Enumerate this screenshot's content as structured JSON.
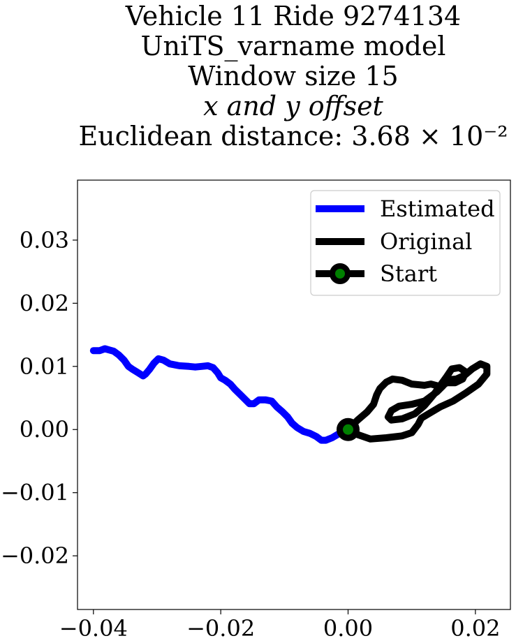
{
  "chart_data": {
    "type": "line",
    "title_lines": [
      "Vehicle 11 Ride 9274134",
      "UniTS_varname model",
      "Window size 15",
      "x and y offset",
      "Euclidean distance: 3.68 × 10⁻²"
    ],
    "xlabel": "",
    "ylabel": "",
    "xlim": [
      -0.0425,
      0.0255
    ],
    "ylim": [
      -0.0285,
      0.0395
    ],
    "grid": false,
    "x_ticks": [
      -0.04,
      -0.02,
      0.0,
      0.02
    ],
    "x_tick_labels": [
      "−0.04",
      "−0.02",
      "0.00",
      "0.02"
    ],
    "y_ticks": [
      -0.02,
      -0.01,
      0.0,
      0.01,
      0.02,
      0.03
    ],
    "y_tick_labels": [
      "−0.02",
      "−0.01",
      "0.00",
      "0.01",
      "0.02",
      "0.03"
    ],
    "legend_position": "top-right",
    "series": [
      {
        "name": "Estimated",
        "color": "#0000ff",
        "points": [
          [
            -0.04,
            0.0125
          ],
          [
            -0.039,
            0.0125
          ],
          [
            -0.0382,
            0.0128
          ],
          [
            -0.0375,
            0.0126
          ],
          [
            -0.0368,
            0.0124
          ],
          [
            -0.036,
            0.0118
          ],
          [
            -0.0352,
            0.011
          ],
          [
            -0.0345,
            0.01
          ],
          [
            -0.0338,
            0.0095
          ],
          [
            -0.033,
            0.009
          ],
          [
            -0.0322,
            0.0085
          ],
          [
            -0.0318,
            0.0088
          ],
          [
            -0.0312,
            0.0095
          ],
          [
            -0.0305,
            0.0105
          ],
          [
            -0.0298,
            0.0112
          ],
          [
            -0.029,
            0.011
          ],
          [
            -0.028,
            0.0104
          ],
          [
            -0.0265,
            0.0101
          ],
          [
            -0.025,
            0.01
          ],
          [
            -0.024,
            0.0099
          ],
          [
            -0.023,
            0.01
          ],
          [
            -0.022,
            0.0101
          ],
          [
            -0.0212,
            0.0098
          ],
          [
            -0.0205,
            0.009
          ],
          [
            -0.02,
            0.0082
          ],
          [
            -0.0193,
            0.0078
          ],
          [
            -0.0185,
            0.0072
          ],
          [
            -0.0178,
            0.0064
          ],
          [
            -0.017,
            0.0056
          ],
          [
            -0.0162,
            0.0048
          ],
          [
            -0.0155,
            0.0041
          ],
          [
            -0.0148,
            0.0041
          ],
          [
            -0.014,
            0.0047
          ],
          [
            -0.013,
            0.0047
          ],
          [
            -0.012,
            0.0045
          ],
          [
            -0.0112,
            0.0036
          ],
          [
            -0.0103,
            0.0028
          ],
          [
            -0.0095,
            0.002
          ],
          [
            -0.0088,
            0.001
          ],
          [
            -0.008,
            0.0003
          ],
          [
            -0.007,
            -0.0003
          ],
          [
            -0.006,
            -0.0006
          ],
          [
            -0.005,
            -0.0011
          ],
          [
            -0.0042,
            -0.0017
          ],
          [
            -0.0035,
            -0.0017
          ],
          [
            -0.0025,
            -0.0013
          ],
          [
            -0.0015,
            -0.0007
          ],
          [
            -0.0007,
            -0.0002
          ],
          [
            0.0,
            0.0
          ]
        ]
      },
      {
        "name": "Original",
        "color": "#000000",
        "points": [
          [
            0.0,
            0.0
          ],
          [
            0.0015,
            -0.0008
          ],
          [
            0.0035,
            -0.0015
          ],
          [
            0.006,
            -0.0013
          ],
          [
            0.0085,
            -0.001
          ],
          [
            0.01,
            -0.0005
          ],
          [
            0.011,
            0.0008
          ],
          [
            0.0115,
            0.0018
          ],
          [
            0.0125,
            0.0024
          ],
          [
            0.0145,
            0.0036
          ],
          [
            0.0165,
            0.0045
          ],
          [
            0.0185,
            0.0058
          ],
          [
            0.0205,
            0.0072
          ],
          [
            0.0218,
            0.0088
          ],
          [
            0.0218,
            0.01
          ],
          [
            0.0208,
            0.0104
          ],
          [
            0.0195,
            0.0096
          ],
          [
            0.0183,
            0.0086
          ],
          [
            0.017,
            0.008
          ],
          [
            0.0158,
            0.0079
          ],
          [
            0.0148,
            0.0068
          ],
          [
            0.014,
            0.006
          ],
          [
            0.0132,
            0.0054
          ],
          [
            0.012,
            0.0045
          ],
          [
            0.01,
            0.004
          ],
          [
            0.008,
            0.0037
          ],
          [
            0.0068,
            0.003
          ],
          [
            0.0063,
            0.002
          ],
          [
            0.0068,
            0.0015
          ],
          [
            0.0085,
            0.0017
          ],
          [
            0.0105,
            0.0025
          ],
          [
            0.012,
            0.0038
          ],
          [
            0.0135,
            0.0056
          ],
          [
            0.0145,
            0.007
          ],
          [
            0.0155,
            0.0084
          ],
          [
            0.0163,
            0.0096
          ],
          [
            0.0175,
            0.0098
          ],
          [
            0.0185,
            0.0091
          ],
          [
            0.018,
            0.008
          ],
          [
            0.0168,
            0.0074
          ],
          [
            0.0155,
            0.0074
          ],
          [
            0.0145,
            0.0068
          ],
          [
            0.013,
            0.0072
          ],
          [
            0.012,
            0.007
          ],
          [
            0.01,
            0.0072
          ],
          [
            0.0085,
            0.0078
          ],
          [
            0.007,
            0.008
          ],
          [
            0.006,
            0.0075
          ],
          [
            0.005,
            0.0065
          ],
          [
            0.0045,
            0.0055
          ],
          [
            0.004,
            0.004
          ],
          [
            0.003,
            0.0028
          ],
          [
            0.0015,
            0.0015
          ],
          [
            0.0005,
            0.0005
          ]
        ]
      }
    ],
    "markers": [
      {
        "name": "Start",
        "x": 0.0,
        "y": 0.0,
        "edge_color": "#000000",
        "face_color": "#008000"
      }
    ]
  }
}
